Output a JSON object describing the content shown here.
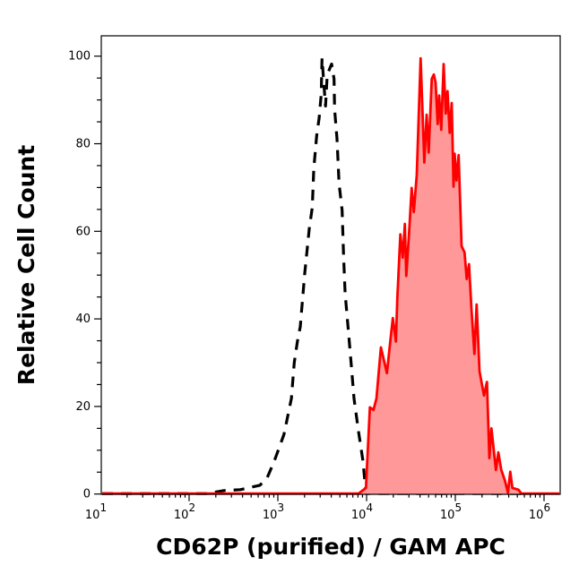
{
  "chart_data": {
    "type": "area",
    "xlabel": "CD62P (purified) / GAM APC",
    "ylabel": "Relative Cell Count",
    "xscale": "log",
    "xlim": [
      10,
      1500000
    ],
    "ylim": [
      0,
      104.6
    ],
    "x_ticks": [
      {
        "value": 10,
        "base": "10",
        "exp": "1"
      },
      {
        "value": 100,
        "base": "10",
        "exp": "2"
      },
      {
        "value": 1000,
        "base": "10",
        "exp": "3"
      },
      {
        "value": 10000,
        "base": "10",
        "exp": "4"
      },
      {
        "value": 100000,
        "base": "10",
        "exp": "5"
      },
      {
        "value": 1000000,
        "base": "10",
        "exp": "6"
      }
    ],
    "y_ticks": [
      {
        "value": 0,
        "label": "0"
      },
      {
        "value": 20,
        "label": "20"
      },
      {
        "value": 40,
        "label": "40"
      },
      {
        "value": 60,
        "label": "60"
      },
      {
        "value": 80,
        "label": "80"
      },
      {
        "value": 100,
        "label": "100"
      }
    ],
    "grid": false,
    "legend": "none",
    "series": [
      {
        "style": "dashed",
        "color": "#000000",
        "fill": "none",
        "x": [
          10,
          156,
          248,
          379,
          628,
          762,
          912,
          1170,
          1420,
          1530,
          1660,
          1790,
          2010,
          2260,
          2440,
          2540,
          2740,
          2920,
          3080,
          3150,
          3330,
          3450,
          3600,
          4040,
          4300,
          4360,
          4640,
          4900,
          5300,
          5510,
          5730,
          6180,
          6680,
          7220,
          8110,
          9120,
          9840,
          560000
        ],
        "y": [
          0,
          0,
          0.8,
          1,
          2,
          3.8,
          7.5,
          13.6,
          21.8,
          30,
          34.8,
          38.2,
          50.4,
          60.7,
          65.4,
          74.3,
          81.8,
          85.9,
          91.3,
          99.5,
          92.7,
          88.6,
          95.8,
          98.2,
          94.8,
          87.9,
          81.1,
          70.9,
          64.8,
          53.9,
          45.7,
          38.2,
          30,
          21.8,
          14.3,
          7.5,
          0,
          0
        ]
      },
      {
        "style": "solid-filled",
        "color": "#ff0000",
        "fill": "#ff9999",
        "x": [
          10,
          8110,
          9840,
          10890,
          11970,
          12910,
          14520,
          16940,
          18320,
          19770,
          21380,
          22180,
          24040,
          25530,
          26980,
          27990,
          30340,
          32210,
          34040,
          36810,
          40640,
          44670,
          47530,
          50120,
          54200,
          57280,
          59980,
          63240,
          65770,
          69340,
          73960,
          77980,
          81660,
          86300,
          91200,
          95500,
          98400,
          103000,
          108900,
          117800,
          127100,
          134300,
          142900,
          152100,
          164100,
          173800,
          187500,
          210400,
          227500,
          242100,
          255300,
          287100,
          305500,
          329600,
          362200,
          391700,
          415900,
          439500,
          512900,
          555900,
          1500000
        ],
        "y": [
          0,
          0,
          1.4,
          19.8,
          19.2,
          21.8,
          33.5,
          27.6,
          34,
          40.2,
          34.8,
          44.7,
          59.3,
          54,
          61.7,
          49.8,
          60.6,
          69.9,
          64.4,
          72.9,
          99.5,
          75.7,
          86.6,
          78,
          94.8,
          95.8,
          94,
          84.5,
          91,
          83.2,
          98.2,
          86.9,
          92,
          82.5,
          89.3,
          70.2,
          77.7,
          71.6,
          77.4,
          56.6,
          55.2,
          49.1,
          52.5,
          42.3,
          32,
          43.3,
          28,
          22.5,
          25.6,
          8.2,
          15,
          5.5,
          9.5,
          5.5,
          3.1,
          0.3,
          5.1,
          1.4,
          1,
          0,
          0
        ]
      }
    ]
  }
}
